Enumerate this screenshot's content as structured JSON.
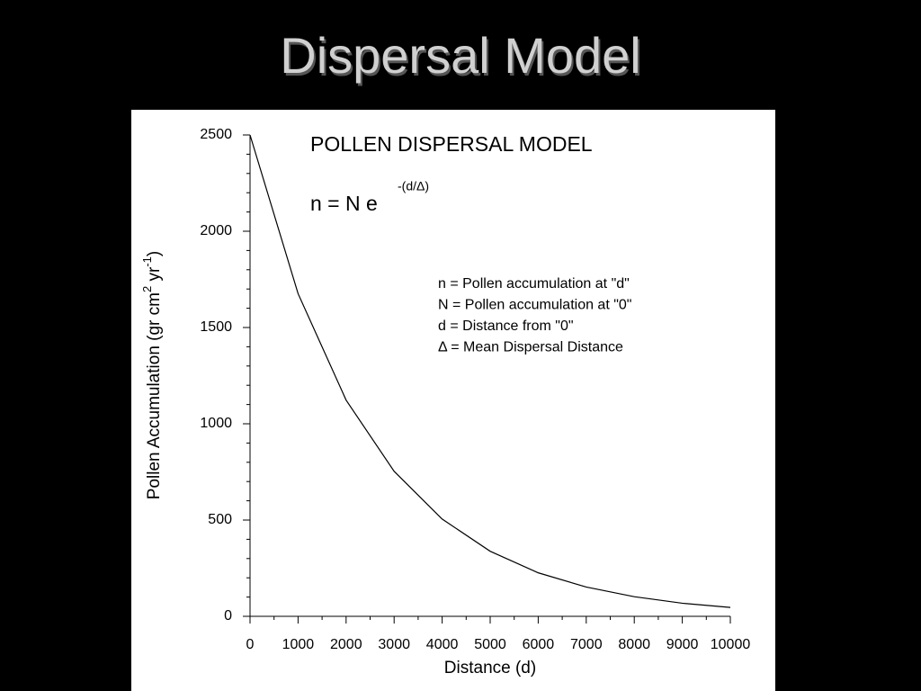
{
  "slide_title": "Dispersal Model",
  "chart_data": {
    "type": "line",
    "title": "POLLEN DISPERSAL MODEL",
    "formula": {
      "base": "n = N e",
      "exponent": "-(d/Δ)"
    },
    "definitions": [
      "n = Pollen accumulation at \"d\"",
      "N = Pollen accumulation at \"0\"",
      "d = Distance from \"0\"",
      "Δ = Mean Dispersal Distance"
    ],
    "x_label": "Distance (d)",
    "y_label": [
      "Pollen Accumulation (gr cm",
      "2",
      " yr",
      "-1",
      ")"
    ],
    "x": [
      0,
      1000,
      2000,
      3000,
      4000,
      5000,
      6000,
      7000,
      8000,
      9000,
      10000
    ],
    "values": [
      2500,
      1676,
      1123,
      753,
      505,
      338,
      226,
      152,
      102,
      68,
      46
    ],
    "color": "#000000",
    "xlim": [
      0,
      10000
    ],
    "xticks": [
      0,
      1000,
      2000,
      3000,
      4000,
      5000,
      6000,
      7000,
      8000,
      9000,
      10000
    ],
    "ylim": [
      0,
      2500
    ],
    "yticks": [
      0,
      500,
      1000,
      1500,
      2000,
      2500
    ]
  }
}
